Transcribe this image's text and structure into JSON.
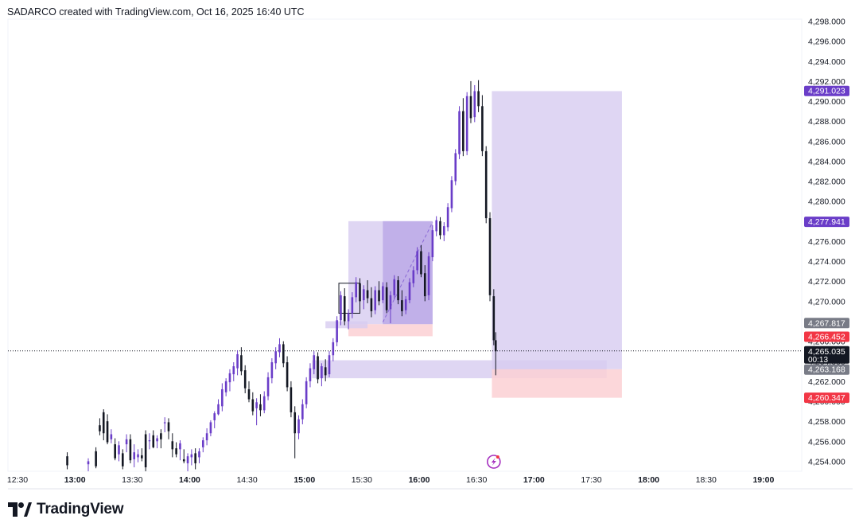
{
  "header": {
    "attribution": "SADARCO created with TradingView.com, Oct 16, 2025 16:40 UTC"
  },
  "footer": {
    "logo_text": "TradingView",
    "logo_icon": "tradingview-logo-icon"
  },
  "colors": {
    "up_body": "#6a3dc8",
    "down_body": "#131722",
    "zone_purple": "#d7ccf0",
    "zone_purple_dark": "#b9a6e6",
    "zone_red": "#fbd0d3",
    "badge_purple": "#6a3dc8",
    "badge_gray": "#787b86",
    "badge_red": "#f23645",
    "badge_black": "#131722"
  },
  "chart_data": {
    "type": "candlestick",
    "title": "",
    "xlabel": "",
    "ylabel": "",
    "x_ticks": [
      {
        "time": "12:30",
        "label": "12:30",
        "bold": false
      },
      {
        "time": "13:00",
        "label": "13:00",
        "bold": true
      },
      {
        "time": "13:30",
        "label": "13:30",
        "bold": false
      },
      {
        "time": "14:00",
        "label": "14:00",
        "bold": true
      },
      {
        "time": "14:30",
        "label": "14:30",
        "bold": false
      },
      {
        "time": "15:00",
        "label": "15:00",
        "bold": true
      },
      {
        "time": "15:30",
        "label": "15:30",
        "bold": false
      },
      {
        "time": "16:00",
        "label": "16:00",
        "bold": true
      },
      {
        "time": "16:30",
        "label": "16:30",
        "bold": false
      },
      {
        "time": "17:00",
        "label": "17:00",
        "bold": true
      },
      {
        "time": "17:30",
        "label": "17:30",
        "bold": false
      },
      {
        "time": "18:00",
        "label": "18:00",
        "bold": true
      },
      {
        "time": "18:30",
        "label": "18:30",
        "bold": false
      },
      {
        "time": "19:00",
        "label": "19:00",
        "bold": true
      }
    ],
    "y_ticks": [
      "4,254.000",
      "4,256.000",
      "4,258.000",
      "4,260.000",
      "4,262.000",
      "4,264.000",
      "4,266.000",
      "4,268.000",
      "4,270.000",
      "4,272.000",
      "4,274.000",
      "4,276.000",
      "4,278.000",
      "4,280.000",
      "4,282.000",
      "4,284.000",
      "4,286.000",
      "4,288.000",
      "4,290.000",
      "4,292.000",
      "4,294.000",
      "4,296.000",
      "4,298.000"
    ],
    "ylim": [
      4253.0,
      4298.2
    ],
    "xlim": [
      "12:25",
      "19:20"
    ],
    "current_price": 4265.035,
    "price_badges": [
      {
        "value": 4291.023,
        "label": "4,291.023",
        "kind": "purple"
      },
      {
        "value": 4277.941,
        "label": "4,277.941",
        "kind": "purple"
      },
      {
        "value": 4267.817,
        "label": "4,267.817",
        "kind": "gray"
      },
      {
        "value": 4266.452,
        "label": "4,266.452",
        "kind": "red"
      },
      {
        "value": 4265.035,
        "label": "4,265.035",
        "sublabel": "00:13",
        "kind": "black"
      },
      {
        "value": 4263.168,
        "label": "4,263.168",
        "kind": "gray"
      },
      {
        "value": 4260.347,
        "label": "4,260.347",
        "kind": "red"
      }
    ],
    "zones": [
      {
        "kind": "purple",
        "x0": "15:23",
        "x1": "16:07",
        "y0": 4267.7,
        "y1": 4278.0
      },
      {
        "kind": "purple_dark",
        "x0": "15:41",
        "x1": "16:07",
        "y0": 4267.7,
        "y1": 4278.0
      },
      {
        "kind": "red",
        "x0": "15:23",
        "x1": "16:07",
        "y0": 4266.5,
        "y1": 4267.7
      },
      {
        "kind": "purple",
        "x0": "15:11",
        "x1": "15:33",
        "y0": 4267.3,
        "y1": 4268.0
      },
      {
        "kind": "purple",
        "x0": "15:04",
        "x1": "17:38",
        "y0": 4262.3,
        "y1": 4264.1
      },
      {
        "kind": "purple",
        "x0": "16:38",
        "x1": "17:46",
        "y0": 4263.2,
        "y1": 4291.0
      },
      {
        "kind": "red",
        "x0": "16:38",
        "x1": "17:46",
        "y0": 4260.35,
        "y1": 4263.2
      }
    ],
    "candles": [
      [
        "12:56",
        4254.5,
        4254.9,
        4253.2,
        4253.6
      ],
      [
        "13:07",
        4253.7,
        4254.3,
        4253.0,
        4254.0
      ],
      [
        "13:11",
        4255.0,
        4255.4,
        4253.3,
        4253.5
      ],
      [
        "13:13",
        4257.6,
        4258.3,
        4256.6,
        4257.0
      ],
      [
        "13:15",
        4258.9,
        4259.2,
        4256.1,
        4256.8
      ],
      [
        "13:17",
        4258.0,
        4258.7,
        4255.7,
        4255.9
      ],
      [
        "13:19",
        4256.2,
        4257.2,
        4255.8,
        4256.7
      ],
      [
        "13:21",
        4255.7,
        4256.3,
        4254.1,
        4254.3
      ],
      [
        "13:23",
        4254.7,
        4256.0,
        4254.0,
        4255.6
      ],
      [
        "13:25",
        4254.8,
        4255.2,
        4253.2,
        4253.5
      ],
      [
        "13:27",
        4255.7,
        4256.7,
        4254.9,
        4256.2
      ],
      [
        "13:29",
        4256.2,
        4256.7,
        4253.8,
        4254.1
      ],
      [
        "13:31",
        4254.2,
        4255.7,
        4253.4,
        4254.9
      ],
      [
        "13:33",
        4254.4,
        4255.2,
        4253.9,
        4254.7
      ],
      [
        "13:35",
        4254.6,
        4255.3,
        4254.0,
        4254.3
      ],
      [
        "13:37",
        4256.7,
        4257.1,
        4253.0,
        4253.4
      ],
      [
        "13:39",
        4256.0,
        4256.8,
        4255.2,
        4256.1
      ],
      [
        "13:41",
        4256.6,
        4257.1,
        4255.3,
        4255.4
      ],
      [
        "13:43",
        4256.0,
        4256.6,
        4255.3,
        4256.3
      ],
      [
        "13:45",
        4256.8,
        4257.2,
        4255.3,
        4256.2
      ],
      [
        "13:47",
        4257.8,
        4258.4,
        4256.9,
        4257.9
      ],
      [
        "13:49",
        4257.9,
        4258.3,
        4256.2,
        4257.0
      ],
      [
        "13:51",
        4256.0,
        4256.8,
        4254.4,
        4255.2
      ],
      [
        "13:53",
        4255.3,
        4255.9,
        4254.4,
        4254.7
      ],
      [
        "13:55",
        4255.2,
        4256.1,
        4254.1,
        4255.8
      ],
      [
        "13:57",
        4254.2,
        4255.2,
        4253.8,
        4254.0
      ],
      [
        "13:59",
        4253.8,
        4254.8,
        4253.0,
        4254.5
      ],
      [
        "14:01",
        4254.4,
        4255.2,
        4253.6,
        4254.7
      ],
      [
        "14:03",
        4254.8,
        4255.3,
        4253.2,
        4253.8
      ],
      [
        "14:05",
        4254.4,
        4255.3,
        4253.8,
        4255.0
      ],
      [
        "14:07",
        4255.4,
        4256.4,
        4254.9,
        4256.1
      ],
      [
        "14:09",
        4256.1,
        4257.3,
        4255.6,
        4256.8
      ],
      [
        "14:11",
        4256.8,
        4258.1,
        4256.5,
        4257.9
      ],
      [
        "14:13",
        4258.1,
        4259.0,
        4257.3,
        4258.8
      ],
      [
        "14:15",
        4258.7,
        4260.2,
        4258.6,
        4259.7
      ],
      [
        "14:17",
        4259.5,
        4261.8,
        4259.0,
        4261.2
      ],
      [
        "14:19",
        4260.9,
        4262.3,
        4260.5,
        4262.0
      ],
      [
        "14:21",
        4261.9,
        4263.2,
        4261.0,
        4262.8
      ],
      [
        "14:23",
        4262.7,
        4263.9,
        4262.0,
        4263.5
      ],
      [
        "14:25",
        4263.3,
        4265.1,
        4262.6,
        4264.7
      ],
      [
        "14:27",
        4264.6,
        4265.4,
        4262.6,
        4263.0
      ],
      [
        "14:29",
        4263.1,
        4263.6,
        4260.8,
        4261.3
      ],
      [
        "14:31",
        4261.2,
        4262.0,
        4259.9,
        4260.2
      ],
      [
        "14:33",
        4260.2,
        4260.9,
        4258.6,
        4259.0
      ],
      [
        "14:35",
        4259.3,
        4260.3,
        4257.6,
        4259.9
      ],
      [
        "14:37",
        4259.7,
        4260.7,
        4258.5,
        4259.1
      ],
      [
        "14:39",
        4259.1,
        4261.0,
        4258.8,
        4260.5
      ],
      [
        "14:41",
        4260.5,
        4262.9,
        4260.1,
        4262.4
      ],
      [
        "14:43",
        4262.3,
        4264.3,
        4261.8,
        4263.9
      ],
      [
        "14:45",
        4263.8,
        4265.4,
        4263.2,
        4265.0
      ],
      [
        "14:47",
        4264.9,
        4266.3,
        4264.4,
        4265.7
      ],
      [
        "14:49",
        4265.7,
        4266.0,
        4263.4,
        4263.8
      ],
      [
        "14:51",
        4263.9,
        4264.5,
        4261.0,
        4261.4
      ],
      [
        "14:53",
        4261.4,
        4262.0,
        4258.4,
        4258.9
      ],
      [
        "14:55",
        4258.9,
        4259.5,
        4254.3,
        4256.8
      ],
      [
        "14:57",
        4256.8,
        4258.6,
        4256.2,
        4258.2
      ],
      [
        "14:59",
        4258.2,
        4260.2,
        4257.7,
        4259.7
      ],
      [
        "15:01",
        4259.7,
        4262.4,
        4259.3,
        4262.0
      ],
      [
        "15:03",
        4262.0,
        4263.8,
        4261.4,
        4263.3
      ],
      [
        "15:05",
        4263.2,
        4265.0,
        4262.7,
        4264.6
      ],
      [
        "15:07",
        4264.5,
        4264.9,
        4261.8,
        4262.2
      ],
      [
        "15:09",
        4262.3,
        4263.8,
        4261.5,
        4263.5
      ],
      [
        "15:11",
        4263.4,
        4264.2,
        4262.0,
        4262.6
      ],
      [
        "15:13",
        4262.7,
        4265.0,
        4262.4,
        4264.6
      ],
      [
        "15:15",
        4264.6,
        4266.3,
        4264.0,
        4265.9
      ],
      [
        "15:17",
        4265.9,
        4268.5,
        4265.5,
        4268.1
      ],
      [
        "15:19",
        4268.1,
        4271.0,
        4267.6,
        4270.6
      ],
      [
        "15:21",
        4270.5,
        4271.3,
        4267.6,
        4268.0
      ],
      [
        "15:23",
        4268.0,
        4269.2,
        4267.2,
        4268.8
      ],
      [
        "15:25",
        4268.8,
        4270.9,
        4268.3,
        4270.4
      ],
      [
        "15:27",
        4270.4,
        4272.4,
        4269.9,
        4271.9
      ],
      [
        "15:29",
        4271.8,
        4272.3,
        4269.5,
        4270.0
      ],
      [
        "15:31",
        4270.1,
        4271.6,
        4269.2,
        4271.2
      ],
      [
        "15:33",
        4271.1,
        4272.1,
        4269.8,
        4270.3
      ],
      [
        "15:35",
        4270.3,
        4271.4,
        4268.4,
        4269.0
      ],
      [
        "15:37",
        4269.1,
        4271.5,
        4268.7,
        4271.1
      ],
      [
        "15:39",
        4271.1,
        4272.0,
        4269.6,
        4270.0
      ],
      [
        "15:41",
        4270.1,
        4271.9,
        4269.8,
        4271.5
      ],
      [
        "15:43",
        4271.4,
        4271.9,
        4268.8,
        4269.1
      ],
      [
        "15:45",
        4269.2,
        4271.0,
        4267.8,
        4270.6
      ],
      [
        "15:47",
        4270.6,
        4272.6,
        4270.2,
        4272.2
      ],
      [
        "15:49",
        4272.1,
        4272.5,
        4269.7,
        4270.1
      ],
      [
        "15:51",
        4270.1,
        4271.1,
        4268.5,
        4269.0
      ],
      [
        "15:53",
        4269.1,
        4270.5,
        4268.7,
        4270.2
      ],
      [
        "15:55",
        4270.1,
        4272.3,
        4269.8,
        4271.9
      ],
      [
        "15:57",
        4271.8,
        4273.5,
        4271.4,
        4273.1
      ],
      [
        "15:59",
        4273.1,
        4275.4,
        4272.7,
        4275.0
      ],
      [
        "16:01",
        4275.0,
        4275.6,
        4272.4,
        4272.7
      ],
      [
        "16:03",
        4272.8,
        4273.6,
        4270.0,
        4270.5
      ],
      [
        "16:05",
        4270.6,
        4274.9,
        4270.1,
        4274.5
      ],
      [
        "16:07",
        4274.4,
        4277.6,
        4274.0,
        4277.1
      ],
      [
        "16:09",
        4277.0,
        4278.5,
        4276.5,
        4278.1
      ],
      [
        "16:11",
        4278.0,
        4278.4,
        4276.2,
        4276.6
      ],
      [
        "16:13",
        4276.6,
        4277.9,
        4276.0,
        4277.5
      ],
      [
        "16:15",
        4277.4,
        4279.8,
        4277.0,
        4279.4
      ],
      [
        "16:17",
        4279.3,
        4282.5,
        4278.9,
        4282.1
      ],
      [
        "16:19",
        4282.0,
        4285.2,
        4281.6,
        4284.8
      ],
      [
        "16:21",
        4284.7,
        4289.5,
        4284.2,
        4289.0
      ],
      [
        "16:23",
        4289.0,
        4290.3,
        4284.5,
        4285.0
      ],
      [
        "16:25",
        4285.0,
        4290.9,
        4284.6,
        4290.5
      ],
      [
        "16:27",
        4290.5,
        4292.0,
        4287.8,
        4288.3
      ],
      [
        "16:29",
        4288.4,
        4291.6,
        4287.9,
        4291.0
      ],
      [
        "16:31",
        4291.0,
        4292.1,
        4288.9,
        4289.5
      ],
      [
        "16:33",
        4289.5,
        4290.6,
        4284.5,
        4285.0
      ],
      [
        "16:35",
        4285.0,
        4285.5,
        4277.8,
        4278.3
      ],
      [
        "16:37",
        4278.3,
        4278.9,
        4270.0,
        4270.6
      ],
      [
        "16:39",
        4270.5,
        4271.2,
        4265.6,
        4266.1
      ],
      [
        "16:40",
        4266.1,
        4266.9,
        4262.6,
        4265.0
      ]
    ]
  }
}
